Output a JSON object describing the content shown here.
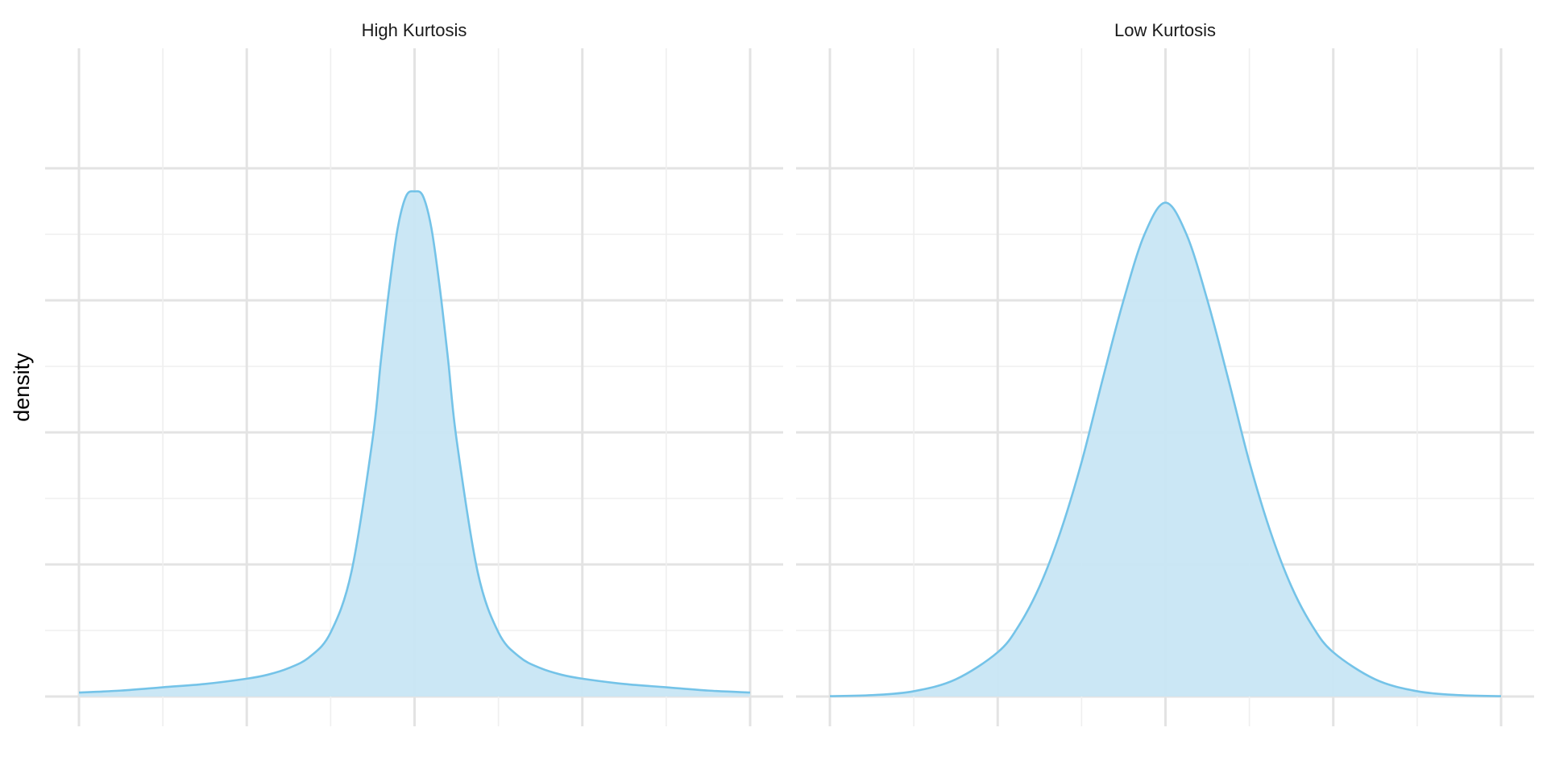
{
  "chart_data": {
    "type": "area",
    "ylabel": "density",
    "xlabel": "",
    "grid": true,
    "legend": "none",
    "colors": {
      "fill": "#c8e6f4",
      "line": "#74c3e8",
      "grid_major": "#e3e3e3",
      "grid_minor": "#efefef"
    },
    "panels": [
      {
        "title": "High Kurtosis",
        "xlim": [
          -4,
          4
        ],
        "ylim": [
          0,
          0.8
        ],
        "x": [
          -4,
          -3.5,
          -3,
          -2.5,
          -2,
          -1.75,
          -1.5,
          -1.25,
          -1,
          -0.75,
          -0.5,
          -0.4,
          -0.3,
          -0.2,
          -0.1,
          0,
          0.1,
          0.2,
          0.3,
          0.4,
          0.5,
          0.75,
          1,
          1.25,
          1.5,
          1.75,
          2,
          2.5,
          3,
          3.5,
          4
        ],
        "y": [
          0.006,
          0.009,
          0.014,
          0.019,
          0.027,
          0.033,
          0.043,
          0.06,
          0.097,
          0.19,
          0.39,
          0.51,
          0.62,
          0.71,
          0.758,
          0.765,
          0.758,
          0.71,
          0.62,
          0.51,
          0.39,
          0.19,
          0.097,
          0.06,
          0.043,
          0.033,
          0.027,
          0.019,
          0.014,
          0.009,
          0.006
        ]
      },
      {
        "title": "Low Kurtosis",
        "xlim": [
          -4,
          4
        ],
        "ylim": [
          0,
          0.8
        ],
        "x": [
          -4,
          -3.5,
          -3,
          -2.5,
          -2,
          -1.75,
          -1.5,
          -1.25,
          -1,
          -0.75,
          -0.5,
          -0.25,
          0,
          0.25,
          0.5,
          0.75,
          1,
          1.25,
          1.5,
          1.75,
          2,
          2.5,
          3,
          3.5,
          4
        ],
        "y": [
          0.0005,
          0.002,
          0.008,
          0.026,
          0.067,
          0.107,
          0.167,
          0.25,
          0.355,
          0.48,
          0.6,
          0.7,
          0.748,
          0.7,
          0.6,
          0.48,
          0.355,
          0.25,
          0.167,
          0.107,
          0.067,
          0.026,
          0.008,
          0.002,
          0.0005
        ]
      }
    ]
  }
}
